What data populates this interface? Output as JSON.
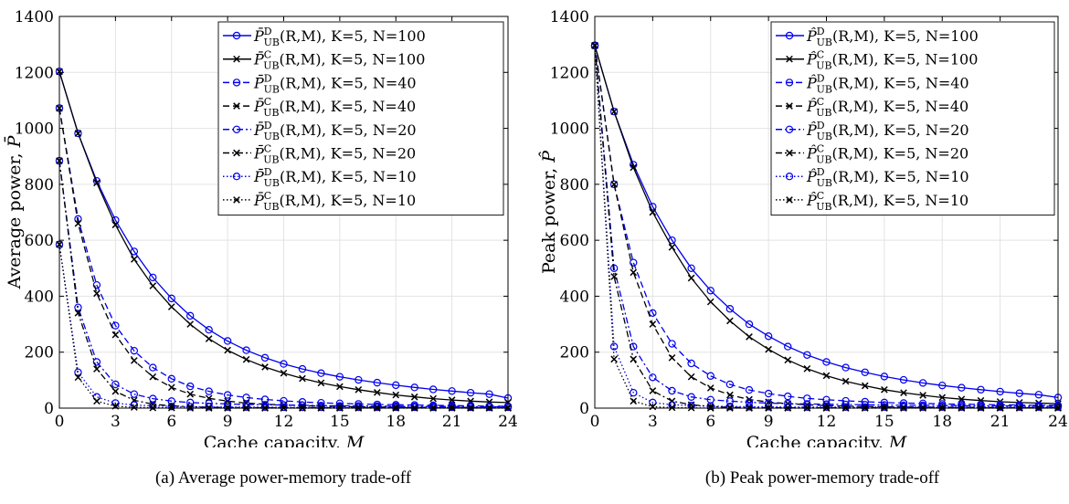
{
  "figures": [
    {
      "caption": "(a) Average power-memory trade-off",
      "chart_data": {
        "type": "line",
        "xlabel": "Cache capacity, M",
        "ylabel": "Average power, P̄",
        "xlim": [
          0,
          24
        ],
        "ylim": [
          0,
          1400
        ],
        "xticks": [
          0,
          3,
          6,
          9,
          12,
          15,
          18,
          21,
          24
        ],
        "yticks": [
          0,
          200,
          400,
          600,
          800,
          1000,
          1200,
          1400
        ],
        "grid": true,
        "legend_position": "top-right",
        "x": [
          0,
          1,
          2,
          3,
          4,
          5,
          6,
          7,
          8,
          9,
          10,
          11,
          12,
          13,
          14,
          15,
          16,
          17,
          18,
          19,
          20,
          21,
          22,
          23,
          24
        ],
        "series": [
          {
            "name": "P̄_UB^D(R,M), K=5, N=100",
            "color": "#0000ee",
            "marker": "circle",
            "dash": "solid",
            "values": [
              1203,
              982,
              812,
              672,
              560,
              467,
              392,
              330,
              280,
              240,
              207,
              180,
              158,
              140,
              125,
              112,
              101,
              91,
              82,
              74,
              67,
              61,
              55,
              50,
              36
            ]
          },
          {
            "name": "P̄_UB^C(R,M), K=5, N=100",
            "color": "#000000",
            "marker": "x",
            "dash": "solid",
            "values": [
              1203,
              982,
              805,
              655,
              532,
              437,
              362,
              300,
              248,
              207,
              174,
              147,
              125,
              106,
              90,
              77,
              66,
              56,
              47,
              40,
              34,
              29,
              25,
              22,
              20
            ]
          },
          {
            "name": "P̄_UB^D(R,M), K=5, N=40",
            "color": "#0000ee",
            "marker": "circle",
            "dash": "dashed",
            "values": [
              1072,
              676,
              440,
              295,
              205,
              145,
              105,
              78,
              60,
              47,
              38,
              31,
              26,
              22,
              19,
              17,
              15,
              13,
              12,
              11,
              10,
              9,
              8,
              7,
              7
            ]
          },
          {
            "name": "P̄_UB^C(R,M), K=5, N=40",
            "color": "#000000",
            "marker": "x",
            "dash": "dashed",
            "values": [
              1072,
              660,
              410,
              262,
              170,
              112,
              74,
              50,
              35,
              25,
              18,
              14,
              11,
              9,
              7,
              6,
              5,
              4,
              4,
              3,
              3,
              3,
              2,
              2,
              2
            ]
          },
          {
            "name": "P̄_UB^D(R,M), K=5, N=20",
            "color": "#0000ee",
            "marker": "circle",
            "dash": "dashdot",
            "values": [
              884,
              360,
              165,
              85,
              50,
              34,
              25,
              20,
              17,
              15,
              13,
              12,
              11,
              10,
              9,
              8,
              8,
              7,
              7,
              6,
              6,
              6,
              5,
              5,
              5
            ]
          },
          {
            "name": "P̄_UB^C(R,M), K=5, N=20",
            "color": "#000000",
            "marker": "x",
            "dash": "dashdot",
            "values": [
              884,
              340,
              140,
              60,
              28,
              14,
              8,
              5,
              3,
              2,
              2,
              1,
              1,
              1,
              1,
              1,
              1,
              1,
              1,
              1,
              1,
              1,
              1,
              1,
              1
            ]
          },
          {
            "name": "P̄_UB^D(R,M), K=5, N=10",
            "color": "#0000ee",
            "marker": "circle",
            "dash": "dotted",
            "values": [
              585,
              128,
              40,
              18,
              11,
              8,
              6,
              5,
              5,
              4,
              4,
              4,
              3,
              3,
              3,
              3,
              3,
              3,
              3,
              3,
              3,
              3,
              3,
              3,
              3
            ]
          },
          {
            "name": "P̄_UB^C(R,M), K=5, N=10",
            "color": "#000000",
            "marker": "x",
            "dash": "dotted",
            "values": [
              585,
              110,
              25,
              7,
              3,
              1,
              1,
              0,
              0,
              0,
              0,
              0,
              0,
              0,
              0,
              0,
              0,
              0,
              0,
              0,
              0,
              0,
              0,
              0,
              0
            ]
          }
        ]
      }
    },
    {
      "caption": "(b) Peak power-memory trade-off",
      "chart_data": {
        "type": "line",
        "xlabel": "Cache capacity, M",
        "ylabel": "Peak power, P̂",
        "xlim": [
          0,
          24
        ],
        "ylim": [
          0,
          1400
        ],
        "xticks": [
          0,
          3,
          6,
          9,
          12,
          15,
          18,
          21,
          24
        ],
        "yticks": [
          0,
          200,
          400,
          600,
          800,
          1000,
          1200,
          1400
        ],
        "grid": true,
        "legend_position": "top-right",
        "x": [
          0,
          1,
          2,
          3,
          4,
          5,
          6,
          7,
          8,
          9,
          10,
          11,
          12,
          13,
          14,
          15,
          16,
          17,
          18,
          19,
          20,
          21,
          22,
          23,
          24
        ],
        "series": [
          {
            "name": "P̂_UB^D(R,M), K=5, N=100",
            "color": "#0000ee",
            "marker": "circle",
            "dash": "solid",
            "values": [
              1296,
              1060,
              870,
              720,
              600,
              500,
              420,
              355,
              300,
              257,
              220,
              190,
              165,
              145,
              128,
              113,
              101,
              90,
              81,
              73,
              66,
              59,
              53,
              48,
              38
            ]
          },
          {
            "name": "P̂_UB^C(R,M), K=5, N=100",
            "color": "#000000",
            "marker": "x",
            "dash": "solid",
            "values": [
              1296,
              1060,
              860,
              700,
              575,
              465,
              380,
              312,
              255,
              210,
              172,
              141,
              116,
              96,
              80,
              66,
              55,
              46,
              38,
              32,
              27,
              23,
              20,
              18,
              16
            ]
          },
          {
            "name": "P̂_UB^D(R,M), K=5, N=40",
            "color": "#0000ee",
            "marker": "circle",
            "dash": "dashed",
            "values": [
              1296,
              800,
              520,
              340,
              230,
              160,
              115,
              85,
              65,
              52,
              42,
              35,
              30,
              26,
              23,
              20,
              18,
              17,
              15,
              14,
              13,
              12,
              11,
              10,
              10
            ]
          },
          {
            "name": "P̂_UB^C(R,M), K=5, N=40",
            "color": "#000000",
            "marker": "x",
            "dash": "dashed",
            "values": [
              1296,
              800,
              485,
              300,
              180,
              112,
              72,
              47,
              31,
              22,
              16,
              12,
              9,
              7,
              6,
              5,
              4,
              4,
              3,
              3,
              3,
              2,
              2,
              2,
              2
            ]
          },
          {
            "name": "P̂_UB^D(R,M), K=5, N=20",
            "color": "#0000ee",
            "marker": "circle",
            "dash": "dashdot",
            "values": [
              1296,
              500,
              220,
              110,
              62,
              40,
              30,
              25,
              21,
              18,
              16,
              15,
              14,
              13,
              12,
              11,
              10,
              10,
              9,
              9,
              8,
              8,
              8,
              7,
              7
            ]
          },
          {
            "name": "P̂_UB^C(R,M), K=5, N=20",
            "color": "#000000",
            "marker": "x",
            "dash": "dashdot",
            "values": [
              1296,
              470,
              175,
              62,
              25,
              12,
              6,
              3,
              2,
              2,
              1,
              1,
              1,
              1,
              1,
              1,
              1,
              1,
              1,
              1,
              1,
              1,
              1,
              1,
              1
            ]
          },
          {
            "name": "P̂_UB^D(R,M), K=5, N=10",
            "color": "#0000ee",
            "marker": "circle",
            "dash": "dotted",
            "values": [
              1296,
              220,
              55,
              20,
              12,
              9,
              7,
              6,
              5,
              5,
              4,
              4,
              4,
              4,
              4,
              4,
              4,
              4,
              4,
              4,
              4,
              4,
              4,
              4,
              4
            ]
          },
          {
            "name": "P̂_UB^C(R,M), K=5, N=10",
            "color": "#000000",
            "marker": "x",
            "dash": "dotted",
            "values": [
              1296,
              175,
              25,
              5,
              2,
              1,
              0,
              0,
              0,
              0,
              0,
              0,
              0,
              0,
              0,
              0,
              0,
              0,
              0,
              0,
              0,
              0,
              0,
              0,
              0
            ]
          }
        ]
      }
    }
  ]
}
